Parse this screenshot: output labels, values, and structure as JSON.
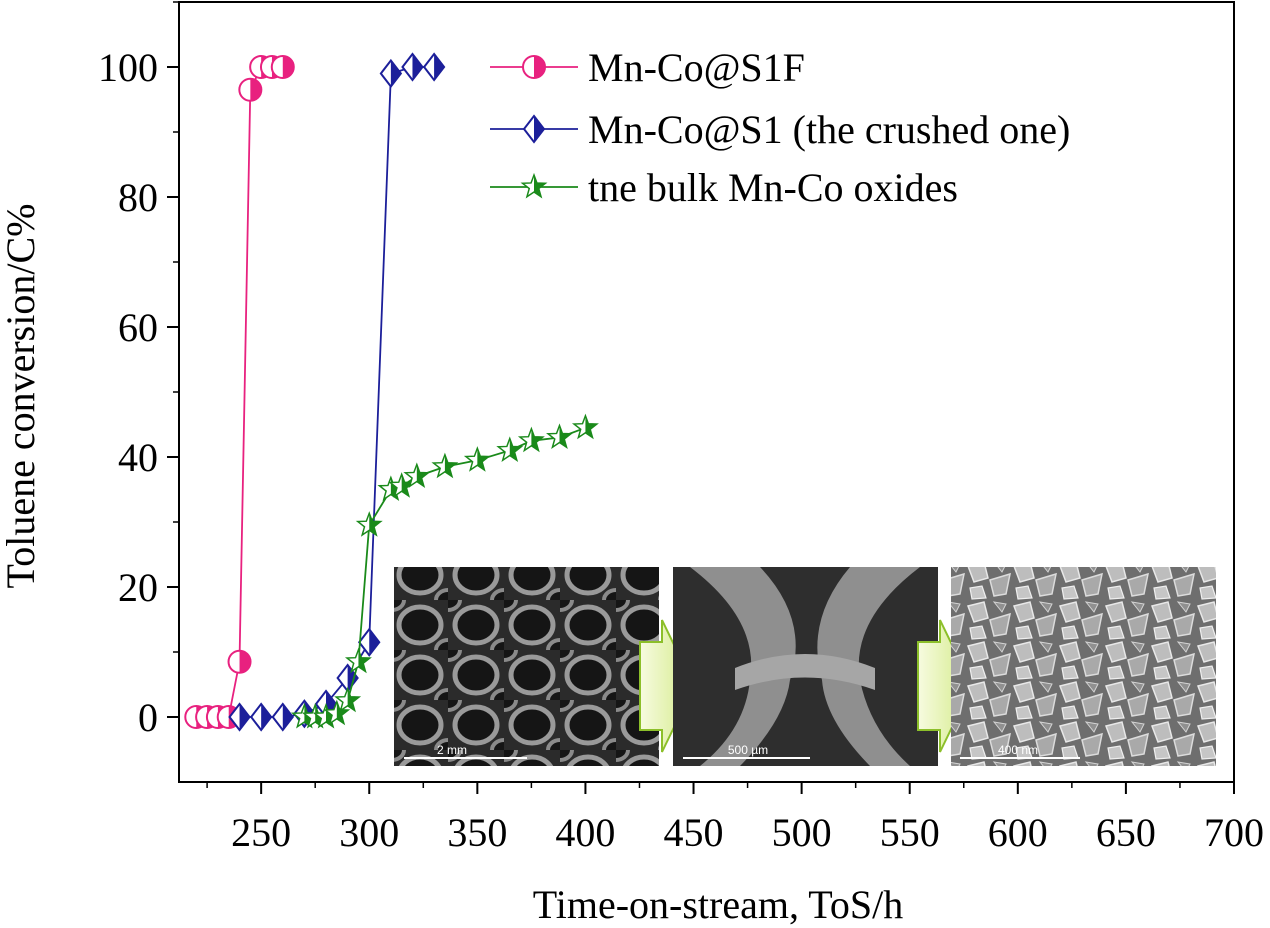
{
  "chart_data": {
    "type": "line",
    "xlabel": "Time-on-stream, ToS/h",
    "ylabel": "Toluene conversion/C%",
    "xlim": [
      212,
      700
    ],
    "ylim": [
      -10,
      110
    ],
    "xticks": [
      250,
      300,
      350,
      400,
      450,
      500,
      550,
      600,
      650,
      700
    ],
    "yticks": [
      0,
      20,
      40,
      60,
      80,
      100
    ],
    "grid": false,
    "legend_position": "top-right",
    "series": [
      {
        "name": "Mn-Co@S1F",
        "color": "#e8217f",
        "marker": "half-circle",
        "points": [
          [
            220,
            0
          ],
          [
            225,
            0
          ],
          [
            230,
            0
          ],
          [
            235,
            0
          ],
          [
            240,
            8.5
          ],
          [
            245,
            96.5
          ],
          [
            250,
            100
          ],
          [
            255,
            100
          ],
          [
            260,
            100
          ]
        ]
      },
      {
        "name": "Mn-Co@S1 (the crushed one)",
        "color": "#1c1f9a",
        "marker": "half-diamond",
        "points": [
          [
            240,
            0
          ],
          [
            250,
            0
          ],
          [
            260,
            0
          ],
          [
            270,
            0.5
          ],
          [
            280,
            2
          ],
          [
            290,
            6
          ],
          [
            300,
            11.5
          ],
          [
            310,
            99
          ],
          [
            320,
            100
          ],
          [
            330,
            100
          ]
        ]
      },
      {
        "name": "tne bulk Mn-Co oxides",
        "color": "#1a8a1a",
        "marker": "half-star",
        "points": [
          [
            270,
            0
          ],
          [
            275,
            0
          ],
          [
            280,
            0
          ],
          [
            285,
            0.5
          ],
          [
            290,
            2.5
          ],
          [
            295,
            8.5
          ],
          [
            300,
            29.5
          ],
          [
            310,
            35
          ],
          [
            315,
            35.5
          ],
          [
            322,
            37
          ],
          [
            335,
            38.5
          ],
          [
            350,
            39.5
          ],
          [
            365,
            41
          ],
          [
            375,
            42.5
          ],
          [
            388,
            43
          ],
          [
            400,
            44.5
          ]
        ]
      }
    ]
  },
  "insets": {
    "scale_bars": [
      "2 mm",
      "500 µm",
      "400 nm"
    ]
  }
}
